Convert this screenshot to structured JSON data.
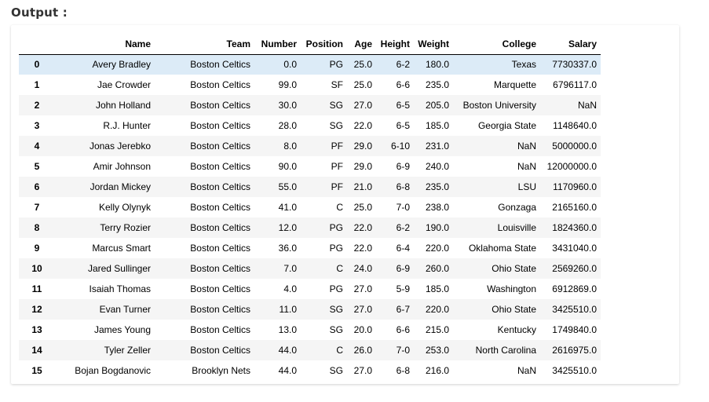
{
  "output_label": "Output :",
  "table": {
    "index_header": "",
    "columns": [
      "Name",
      "Team",
      "Number",
      "Position",
      "Age",
      "Height",
      "Weight",
      "College",
      "Salary"
    ],
    "rows": [
      {
        "index": "0",
        "cells": [
          "Avery Bradley",
          "Boston Celtics",
          "0.0",
          "PG",
          "25.0",
          "6-2",
          "180.0",
          "Texas",
          "7730337.0"
        ]
      },
      {
        "index": "1",
        "cells": [
          "Jae Crowder",
          "Boston Celtics",
          "99.0",
          "SF",
          "25.0",
          "6-6",
          "235.0",
          "Marquette",
          "6796117.0"
        ]
      },
      {
        "index": "2",
        "cells": [
          "John Holland",
          "Boston Celtics",
          "30.0",
          "SG",
          "27.0",
          "6-5",
          "205.0",
          "Boston University",
          "NaN"
        ]
      },
      {
        "index": "3",
        "cells": [
          "R.J. Hunter",
          "Boston Celtics",
          "28.0",
          "SG",
          "22.0",
          "6-5",
          "185.0",
          "Georgia State",
          "1148640.0"
        ]
      },
      {
        "index": "4",
        "cells": [
          "Jonas Jerebko",
          "Boston Celtics",
          "8.0",
          "PF",
          "29.0",
          "6-10",
          "231.0",
          "NaN",
          "5000000.0"
        ]
      },
      {
        "index": "5",
        "cells": [
          "Amir Johnson",
          "Boston Celtics",
          "90.0",
          "PF",
          "29.0",
          "6-9",
          "240.0",
          "NaN",
          "12000000.0"
        ]
      },
      {
        "index": "6",
        "cells": [
          "Jordan Mickey",
          "Boston Celtics",
          "55.0",
          "PF",
          "21.0",
          "6-8",
          "235.0",
          "LSU",
          "1170960.0"
        ]
      },
      {
        "index": "7",
        "cells": [
          "Kelly Olynyk",
          "Boston Celtics",
          "41.0",
          "C",
          "25.0",
          "7-0",
          "238.0",
          "Gonzaga",
          "2165160.0"
        ]
      },
      {
        "index": "8",
        "cells": [
          "Terry Rozier",
          "Boston Celtics",
          "12.0",
          "PG",
          "22.0",
          "6-2",
          "190.0",
          "Louisville",
          "1824360.0"
        ]
      },
      {
        "index": "9",
        "cells": [
          "Marcus Smart",
          "Boston Celtics",
          "36.0",
          "PG",
          "22.0",
          "6-4",
          "220.0",
          "Oklahoma State",
          "3431040.0"
        ]
      },
      {
        "index": "10",
        "cells": [
          "Jared Sullinger",
          "Boston Celtics",
          "7.0",
          "C",
          "24.0",
          "6-9",
          "260.0",
          "Ohio State",
          "2569260.0"
        ]
      },
      {
        "index": "11",
        "cells": [
          "Isaiah Thomas",
          "Boston Celtics",
          "4.0",
          "PG",
          "27.0",
          "5-9",
          "185.0",
          "Washington",
          "6912869.0"
        ]
      },
      {
        "index": "12",
        "cells": [
          "Evan Turner",
          "Boston Celtics",
          "11.0",
          "SG",
          "27.0",
          "6-7",
          "220.0",
          "Ohio State",
          "3425510.0"
        ]
      },
      {
        "index": "13",
        "cells": [
          "James Young",
          "Boston Celtics",
          "13.0",
          "SG",
          "20.0",
          "6-6",
          "215.0",
          "Kentucky",
          "1749840.0"
        ]
      },
      {
        "index": "14",
        "cells": [
          "Tyler Zeller",
          "Boston Celtics",
          "44.0",
          "C",
          "26.0",
          "7-0",
          "253.0",
          "North Carolina",
          "2616975.0"
        ]
      },
      {
        "index": "15",
        "cells": [
          "Bojan Bogdanovic",
          "Brooklyn Nets",
          "44.0",
          "SG",
          "27.0",
          "6-8",
          "216.0",
          "NaN",
          "3425510.0"
        ]
      }
    ]
  },
  "colors": {
    "highlight_row": "#dcebf7",
    "stripe_row": "#f5f5f5"
  }
}
